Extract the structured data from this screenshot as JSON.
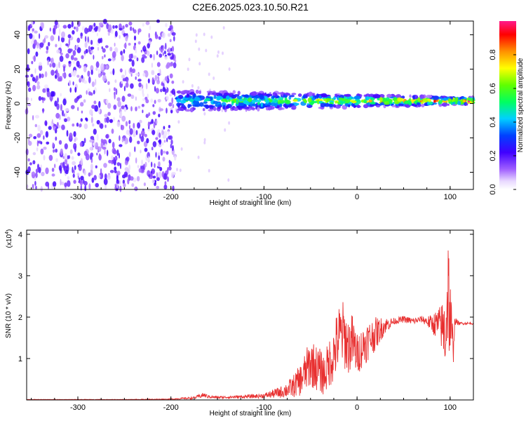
{
  "title": "C2E6.2025.023.10.50.R21",
  "chart_data": [
    {
      "type": "heatmap",
      "title": "C2E6.2025.023.10.50.R21",
      "xlabel": "Height of straight line (km)",
      "ylabel": "Frequency (Hz)",
      "xlim": [
        -355,
        125
      ],
      "ylim": [
        -50,
        48
      ],
      "xticks": [
        -300,
        -200,
        -100,
        0,
        100
      ],
      "yticks": [
        -40,
        -20,
        0,
        20,
        40
      ],
      "xtick_labels": [
        "-300",
        "-200",
        "-100",
        "0",
        "100"
      ],
      "ytick_labels": [
        "-40",
        "-20",
        "0",
        "20",
        "40"
      ],
      "colorbar": {
        "label": "Normalized spectral amplitude",
        "range": [
          0,
          1
        ],
        "ticks": [
          0.0,
          0.2,
          0.4,
          0.6,
          0.8
        ],
        "tick_labels": [
          "0.0",
          "0.2",
          "0.4",
          "0.6",
          "0.8"
        ],
        "colormap": "rainbow: white → violet → blue → cyan → green → yellow → red → magenta"
      },
      "features": [
        {
          "region": "noise",
          "x": [
            -355,
            -195
          ],
          "y": [
            -50,
            48
          ],
          "amplitude": 0.2
        },
        {
          "region": "echo band",
          "x": [
            -195,
            125
          ],
          "y_center": 1.5,
          "half_width": [
            6,
            2
          ],
          "amplitude": [
            0.4,
            0.9
          ]
        }
      ],
      "grid": false
    },
    {
      "type": "line",
      "xlabel": "Height of straight line (km)",
      "ylabel": "SNR (10 * v/v)",
      "y_multiplier": "(x10^4)",
      "y_multiplier_base": "(x10",
      "y_multiplier_exp": "4",
      "y_multiplier_close": ")",
      "xlim": [
        -355,
        125
      ],
      "ylim": [
        0,
        4.1
      ],
      "xticks": [
        -300,
        -200,
        -100,
        0,
        100
      ],
      "yticks": [
        1,
        2,
        3,
        4
      ],
      "xtick_labels": [
        "-300",
        "-200",
        "-100",
        "0",
        "100"
      ],
      "ytick_labels": [
        "1",
        "2",
        "3",
        "4"
      ],
      "color": "#e83030",
      "series": [
        {
          "x": [
            -355,
            -250,
            -200,
            -175,
            -165,
            -160,
            -150,
            -120,
            -100,
            -80,
            -70,
            -60,
            -50,
            -45,
            -40,
            -35,
            -30,
            -25,
            -20,
            -15,
            -10,
            -5,
            0,
            10,
            20,
            30,
            40,
            50,
            60,
            70,
            80,
            90,
            95,
            98,
            100,
            103,
            105,
            110,
            125
          ],
          "y": [
            0.01,
            0.01,
            0.02,
            0.05,
            0.12,
            0.08,
            0.06,
            0.08,
            0.1,
            0.2,
            0.3,
            0.5,
            0.9,
            0.8,
            0.7,
            0.6,
            0.9,
            1.1,
            1.5,
            1.6,
            1.3,
            1.4,
            1.1,
            1.4,
            1.6,
            1.8,
            1.9,
            1.95,
            1.9,
            1.95,
            1.85,
            1.8,
            1.6,
            2.8,
            1.8,
            1.2,
            1.9,
            1.85,
            1.85
          ],
          "spread": [
            0.005,
            0.005,
            0.01,
            0.03,
            0.06,
            0.04,
            0.03,
            0.04,
            0.06,
            0.15,
            0.25,
            0.4,
            0.6,
            0.55,
            0.55,
            0.5,
            0.6,
            0.7,
            0.8,
            0.8,
            0.7,
            0.7,
            0.5,
            0.5,
            0.4,
            0.2,
            0.08,
            0.08,
            0.08,
            0.08,
            0.2,
            0.5,
            1.0,
            1.4,
            1.3,
            0.6,
            0.1,
            0.03,
            0.03
          ]
        }
      ]
    }
  ]
}
